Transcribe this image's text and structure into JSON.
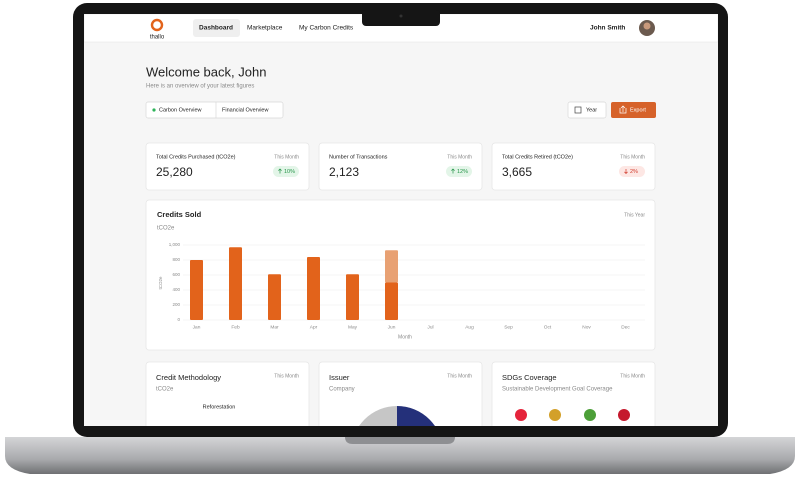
{
  "nav": {
    "logo": "thallo",
    "links": [
      "Dashboard",
      "Marketplace",
      "My Carbon Credits"
    ],
    "user": "John Smith"
  },
  "header": {
    "title": "Welcome back, John",
    "subtitle": "Here is an overview of your latest figures"
  },
  "tabs": [
    "Carbon Overview",
    "Financial Overview"
  ],
  "buttons": [
    "Year",
    "Export"
  ],
  "stats": [
    {
      "label": "Total Credits Purchased (tCO2e)",
      "period": "This Month",
      "value": "25,280",
      "change": "10%"
    },
    {
      "label": "Number of Transactions",
      "period": "This Month",
      "value": "2,123",
      "change": "12%"
    },
    {
      "label": "Total Credits Retired (tCO2e)",
      "period": "This Month",
      "value": "3,665",
      "change": "2%"
    }
  ],
  "chart_data": {
    "type": "bar",
    "title": "Credits Sold",
    "subtitle": "tCO2e",
    "period": "This Year",
    "categories": [
      "Jan",
      "Feb",
      "Mar",
      "Apr",
      "May",
      "Jun",
      "Jul",
      "Aug",
      "Sep",
      "Oct",
      "Nov",
      "Dec"
    ],
    "series": [
      {
        "color": "#e2631b",
        "values": [
          800,
          970,
          610,
          840,
          610,
          500,
          null,
          null,
          null,
          null,
          null,
          null
        ]
      },
      {
        "color": "#e8a173",
        "values": [
          null,
          null,
          null,
          null,
          null,
          430,
          null,
          null,
          null,
          null,
          null,
          null
        ]
      }
    ],
    "stacked": true,
    "ylim": [
      0,
      1000
    ],
    "yticks": [
      0,
      200,
      400,
      600,
      800,
      {
        "value": 1000,
        "label": "1,000"
      }
    ],
    "ylabel": "tCO2e",
    "xlabel": "Month",
    "grid": true
  },
  "panels": [
    {
      "title": "Credit Methodology",
      "period": "This Month",
      "subtitle": "tCO2e",
      "note": "Reforestation"
    },
    {
      "title": "Issuer",
      "period": "This Month",
      "subtitle": "Company"
    },
    {
      "title": "SDGs Coverage",
      "period": "This Month",
      "subtitle": "Sustainable Development Goal Coverage"
    }
  ]
}
